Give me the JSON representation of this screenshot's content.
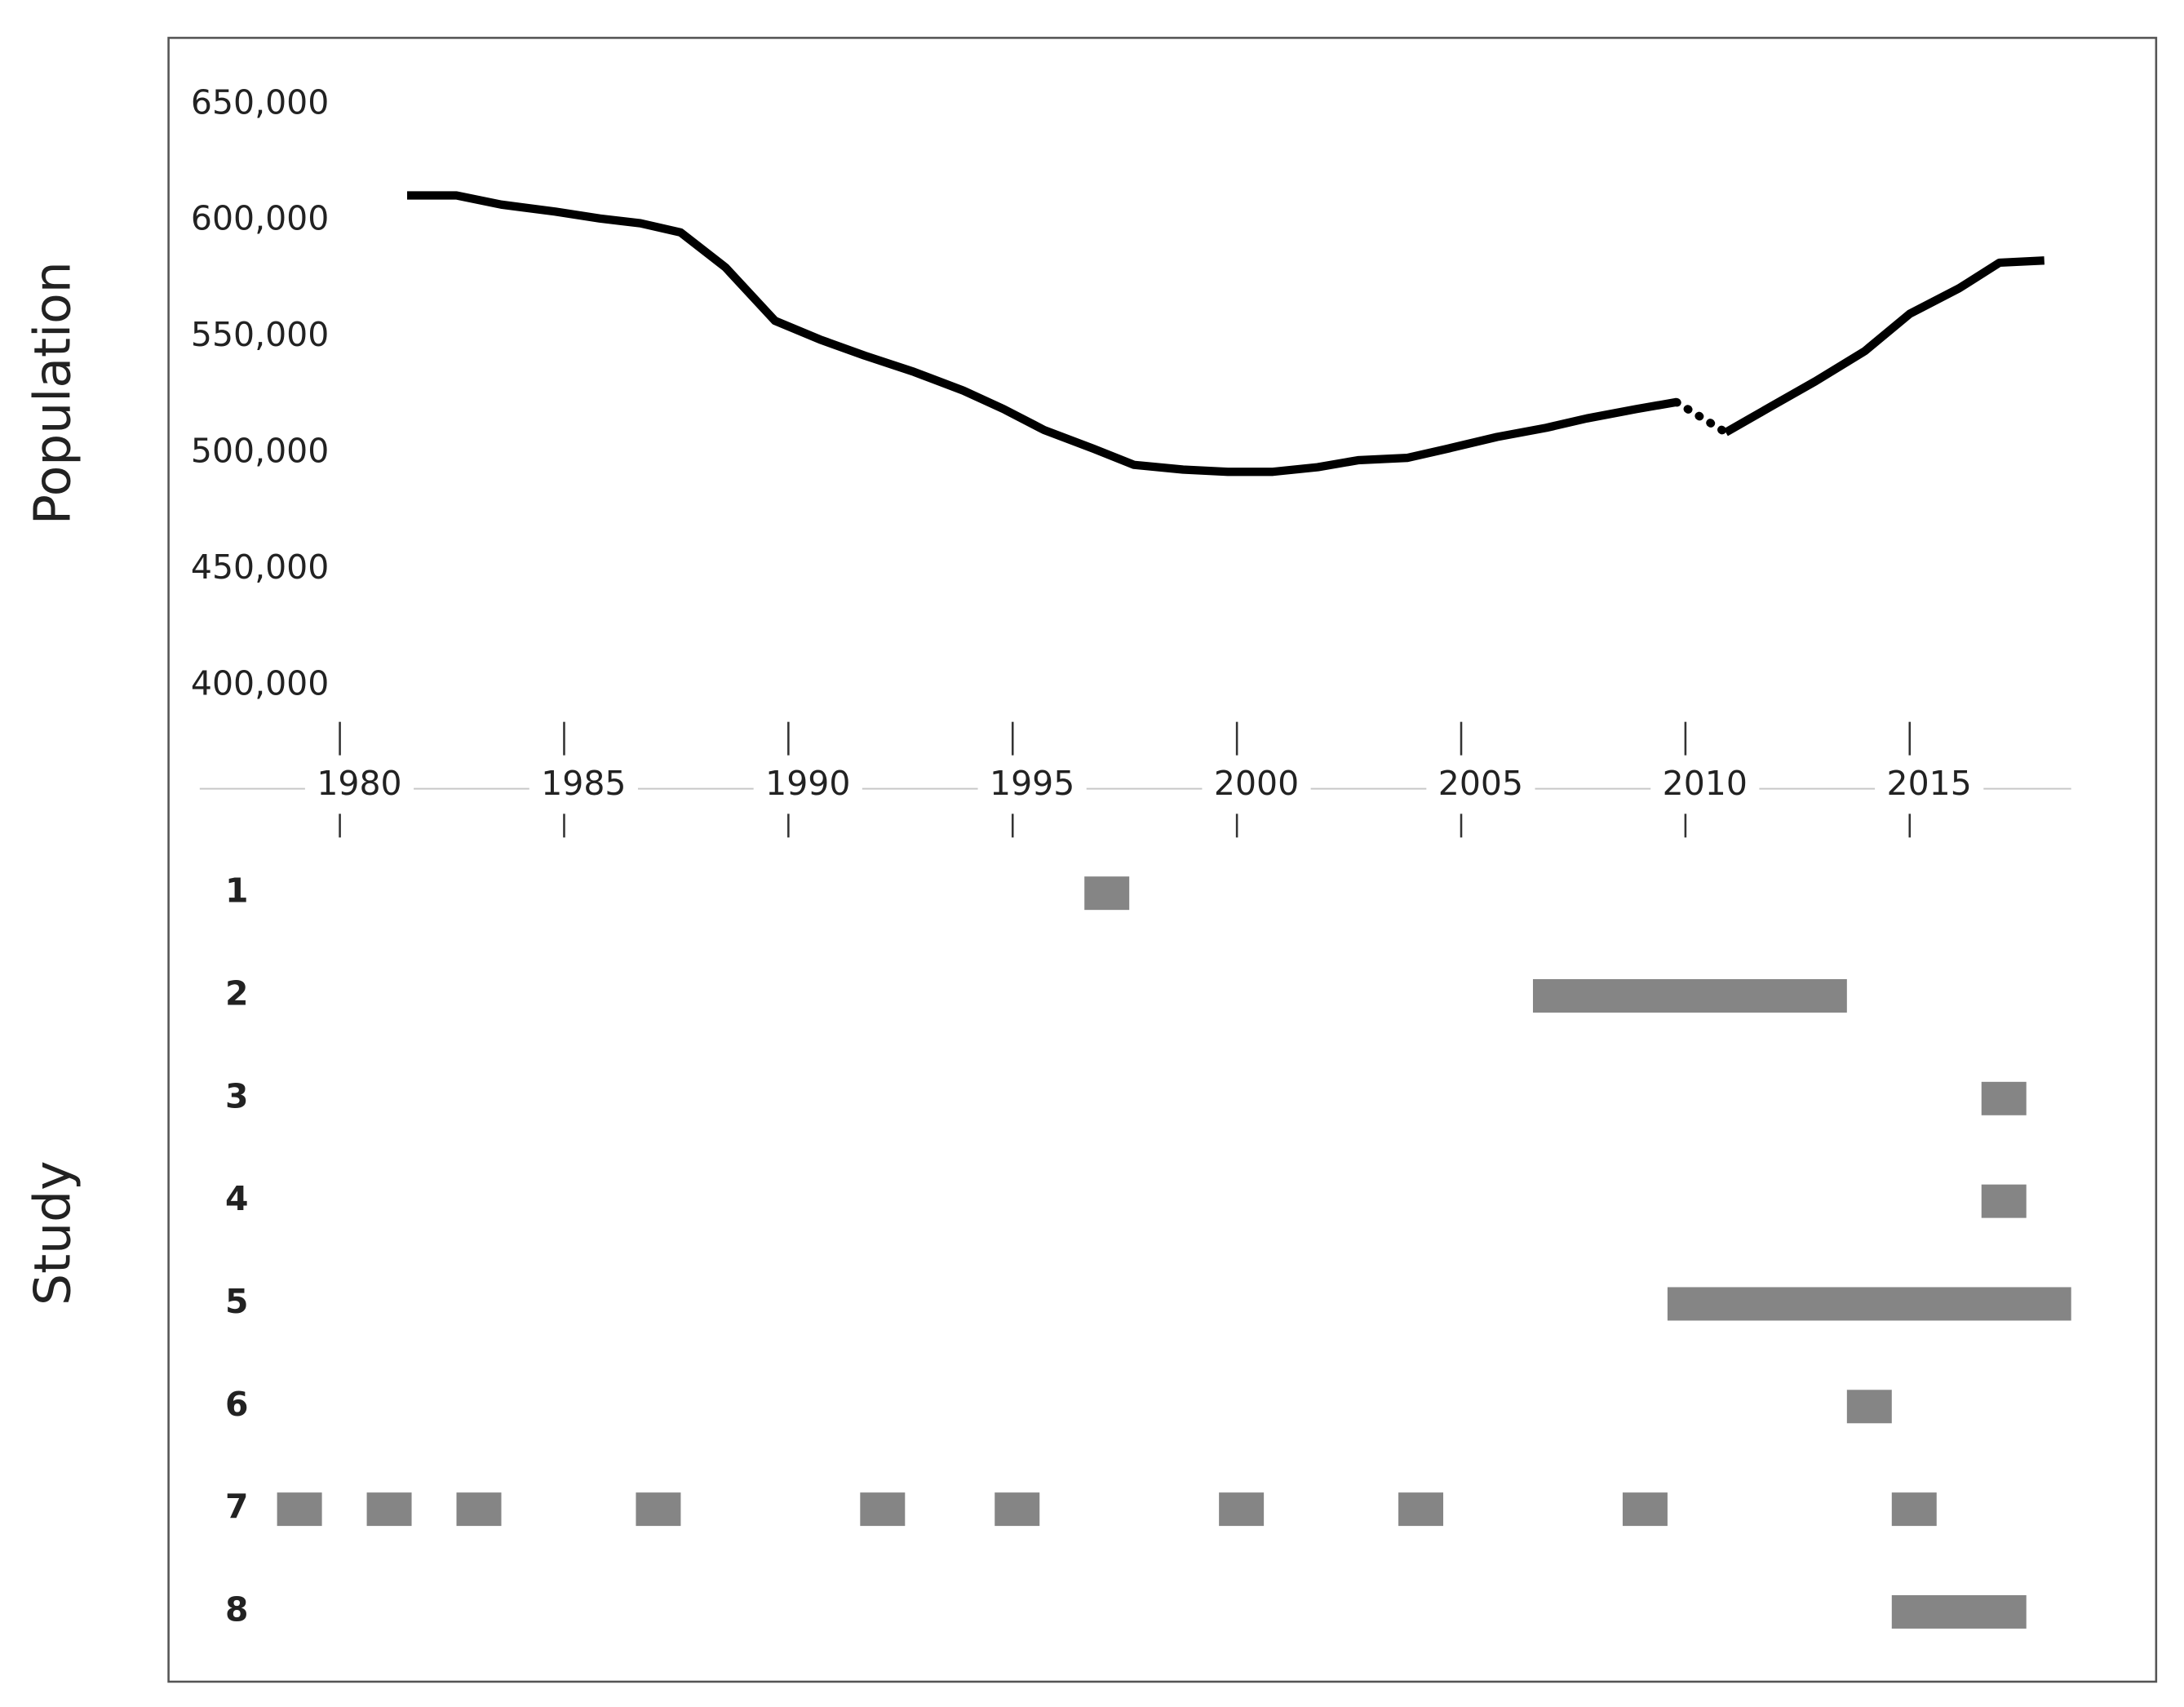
{
  "chart_data": [
    {
      "type": "line",
      "y_label": "Population",
      "xlim": [
        1977,
        2018.6
      ],
      "xticks": [
        1980,
        1985,
        1990,
        1995,
        2000,
        2005,
        2010,
        2015
      ],
      "ylim": [
        400000,
        650000
      ],
      "yticks": [
        {
          "value": 400000,
          "label": "400,000"
        },
        {
          "value": 450000,
          "label": "450,000"
        },
        {
          "value": 500000,
          "label": "500,000"
        },
        {
          "value": 550000,
          "label": "550,000"
        },
        {
          "value": 600000,
          "label": "600,000"
        },
        {
          "value": 650000,
          "label": "650,000"
        }
      ],
      "color": "#000000",
      "series": [
        {
          "dashed": false,
          "x": [
            1981.5,
            1982.6,
            1983.6,
            1984.8,
            1985.8,
            1986.7,
            1987.6,
            1988.6,
            1989.7,
            1990.7,
            1991.7,
            1992.8,
            1993.9,
            1994.8,
            1995.7,
            1996.8,
            1997.7,
            1998.8,
            1999.8,
            2000.8,
            2001.8,
            2002.7,
            2003.8,
            2004.7,
            2005.8,
            2006.9,
            2007.8,
            2008.9,
            2009.8
          ],
          "values": [
            611000,
            611000,
            607000,
            604000,
            601000,
            599000,
            595000,
            580000,
            557000,
            549000,
            542000,
            535000,
            527000,
            519000,
            510000,
            502000,
            495000,
            493000,
            492000,
            492000,
            494000,
            497000,
            498000,
            502000,
            507000,
            511000,
            515000,
            519000,
            522000
          ]
        },
        {
          "dashed": true,
          "x": [
            2009.8,
            2010.9
          ],
          "values": [
            522000,
            509000
          ]
        },
        {
          "dashed": false,
          "x": [
            2010.9,
            2011.9,
            2012.9,
            2014.0,
            2015.0,
            2016.1,
            2017.0,
            2018.0
          ],
          "values": [
            509000,
            520000,
            531000,
            544000,
            560000,
            571000,
            582000,
            583000
          ]
        }
      ]
    },
    {
      "type": "timeline",
      "y_label": "Study",
      "xlim": [
        1977,
        2018.6
      ],
      "color": "#858585",
      "categories": [
        "1",
        "2",
        "3",
        "4",
        "5",
        "6",
        "7",
        "8"
      ],
      "bars": [
        [
          [
            1996.6,
            1997.6
          ]
        ],
        [
          [
            2006.6,
            2013.6
          ]
        ],
        [
          [
            2016.6,
            2017.6
          ]
        ],
        [
          [
            2016.6,
            2017.6
          ]
        ],
        [
          [
            2009.6,
            2018.6
          ]
        ],
        [
          [
            2013.6,
            2014.6
          ]
        ],
        [
          [
            1978.6,
            1979.6
          ],
          [
            1980.6,
            1981.6
          ],
          [
            1982.6,
            1983.6
          ],
          [
            1986.6,
            1987.6
          ],
          [
            1991.6,
            1992.6
          ],
          [
            1994.6,
            1995.6
          ],
          [
            1999.6,
            2000.6
          ],
          [
            2003.6,
            2004.6
          ],
          [
            2008.6,
            2009.6
          ],
          [
            2014.6,
            2015.6
          ]
        ],
        [
          [
            2014.6,
            2017.6
          ]
        ]
      ]
    }
  ]
}
